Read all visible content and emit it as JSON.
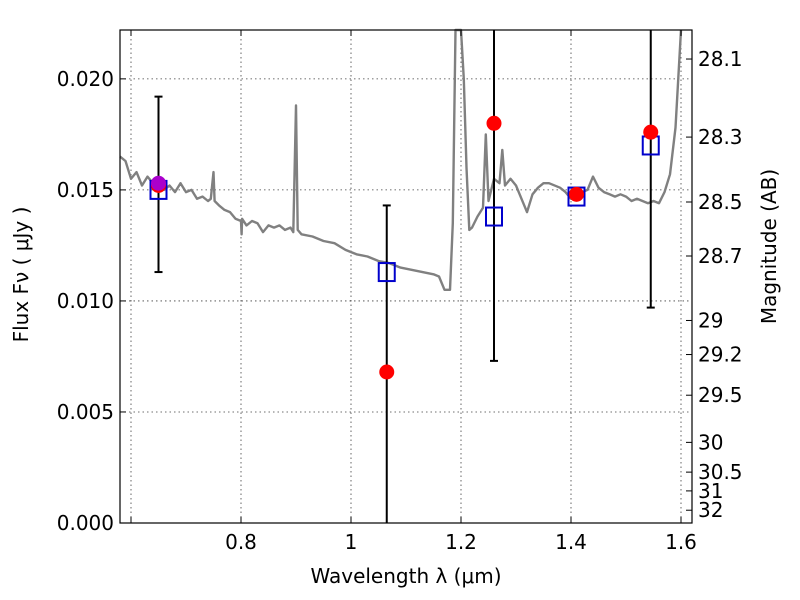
{
  "chart_data": {
    "type": "scatter",
    "title": "",
    "xlabel": "Wavelength  λ (μm)",
    "ylabel": "Flux  Fν  ( μJy )",
    "ylabel_right": "Magnitude (AB)",
    "xlim": [
      0.58,
      1.62
    ],
    "ylim": [
      0.0,
      0.0222
    ],
    "grid": true,
    "x_ticks": [
      {
        "value": 0.6,
        "label": ""
      },
      {
        "value": 0.8,
        "label": "0.8"
      },
      {
        "value": 1.0,
        "label": "1"
      },
      {
        "value": 1.2,
        "label": "1.2"
      },
      {
        "value": 1.4,
        "label": "1.4"
      },
      {
        "value": 1.6,
        "label": "1.6"
      }
    ],
    "y_ticks": [
      {
        "value": 0.0,
        "label": "0.000"
      },
      {
        "value": 0.005,
        "label": "0.005"
      },
      {
        "value": 0.01,
        "label": "0.010"
      },
      {
        "value": 0.015,
        "label": "0.015"
      },
      {
        "value": 0.02,
        "label": "0.020"
      }
    ],
    "mag_ticks": [
      "28.1",
      "28.3",
      "28.5",
      "28.7",
      "29",
      "29.2",
      "29.5",
      "30",
      "30.5",
      "31",
      "32"
    ],
    "series": [
      {
        "kind": "spectrum",
        "color": "#808080",
        "points": [
          [
            0.58,
            0.0165
          ],
          [
            0.59,
            0.0163
          ],
          [
            0.6,
            0.0155
          ],
          [
            0.61,
            0.0158
          ],
          [
            0.62,
            0.0152
          ],
          [
            0.63,
            0.0156
          ],
          [
            0.64,
            0.0153
          ],
          [
            0.65,
            0.0152
          ],
          [
            0.66,
            0.015
          ],
          [
            0.67,
            0.0152
          ],
          [
            0.68,
            0.0149
          ],
          [
            0.69,
            0.0153
          ],
          [
            0.7,
            0.0149
          ],
          [
            0.71,
            0.015
          ],
          [
            0.72,
            0.0146
          ],
          [
            0.73,
            0.0147
          ],
          [
            0.74,
            0.0145
          ],
          [
            0.745,
            0.0146
          ],
          [
            0.75,
            0.0158
          ],
          [
            0.752,
            0.0145
          ],
          [
            0.76,
            0.0143
          ],
          [
            0.77,
            0.0141
          ],
          [
            0.78,
            0.014
          ],
          [
            0.79,
            0.0137
          ],
          [
            0.8,
            0.0136
          ],
          [
            0.801,
            0.013
          ],
          [
            0.802,
            0.0137
          ],
          [
            0.81,
            0.0134
          ],
          [
            0.82,
            0.0136
          ],
          [
            0.83,
            0.0135
          ],
          [
            0.84,
            0.0131
          ],
          [
            0.85,
            0.0134
          ],
          [
            0.86,
            0.0133
          ],
          [
            0.87,
            0.0134
          ],
          [
            0.88,
            0.0132
          ],
          [
            0.89,
            0.0133
          ],
          [
            0.895,
            0.0131
          ],
          [
            0.9,
            0.0188
          ],
          [
            0.903,
            0.0132
          ],
          [
            0.91,
            0.013
          ],
          [
            0.93,
            0.0129
          ],
          [
            0.95,
            0.0127
          ],
          [
            0.97,
            0.0126
          ],
          [
            0.99,
            0.0123
          ],
          [
            1.01,
            0.0121
          ],
          [
            1.03,
            0.012
          ],
          [
            1.05,
            0.0118
          ],
          [
            1.07,
            0.0117
          ],
          [
            1.09,
            0.0115
          ],
          [
            1.11,
            0.0114
          ],
          [
            1.13,
            0.0113
          ],
          [
            1.15,
            0.0112
          ],
          [
            1.16,
            0.0111
          ],
          [
            1.17,
            0.0105
          ],
          [
            1.18,
            0.0105
          ],
          [
            1.185,
            0.0135
          ],
          [
            1.19,
            0.0222
          ],
          [
            1.195,
            0.0222
          ],
          [
            1.2,
            0.0222
          ],
          [
            1.205,
            0.02
          ],
          [
            1.21,
            0.016
          ],
          [
            1.215,
            0.0132
          ],
          [
            1.22,
            0.0133
          ],
          [
            1.23,
            0.0138
          ],
          [
            1.24,
            0.0142
          ],
          [
            1.245,
            0.0175
          ],
          [
            1.25,
            0.0145
          ],
          [
            1.26,
            0.0155
          ],
          [
            1.27,
            0.0153
          ],
          [
            1.275,
            0.0168
          ],
          [
            1.28,
            0.0152
          ],
          [
            1.29,
            0.0155
          ],
          [
            1.3,
            0.0152
          ],
          [
            1.31,
            0.0146
          ],
          [
            1.32,
            0.014
          ],
          [
            1.33,
            0.0148
          ],
          [
            1.34,
            0.0151
          ],
          [
            1.35,
            0.0153
          ],
          [
            1.36,
            0.0153
          ],
          [
            1.38,
            0.0151
          ],
          [
            1.39,
            0.0149
          ],
          [
            1.4,
            0.0146
          ],
          [
            1.41,
            0.0147
          ],
          [
            1.42,
            0.0149
          ],
          [
            1.43,
            0.015
          ],
          [
            1.44,
            0.0156
          ],
          [
            1.45,
            0.0151
          ],
          [
            1.46,
            0.0149
          ],
          [
            1.47,
            0.0148
          ],
          [
            1.48,
            0.0147
          ],
          [
            1.49,
            0.0148
          ],
          [
            1.5,
            0.0147
          ],
          [
            1.51,
            0.0145
          ],
          [
            1.52,
            0.0146
          ],
          [
            1.53,
            0.0145
          ],
          [
            1.54,
            0.0144
          ],
          [
            1.55,
            0.0145
          ],
          [
            1.56,
            0.0144
          ],
          [
            1.57,
            0.0149
          ],
          [
            1.58,
            0.0157
          ],
          [
            1.59,
            0.0178
          ],
          [
            1.6,
            0.0222
          ]
        ]
      },
      {
        "kind": "measured-flux",
        "color": "#ff0000",
        "points": [
          {
            "x": 0.65,
            "y": 0.0152,
            "yerr_low": 0.0113,
            "yerr_high": 0.0192
          },
          {
            "x": 1.065,
            "y": 0.0068,
            "yerr_low": 0.0,
            "yerr_high": 0.0143
          },
          {
            "x": 1.26,
            "y": 0.018,
            "yerr_low": 0.0073,
            "yerr_high": 0.0222
          },
          {
            "x": 1.41,
            "y": 0.0148,
            "yerr_low": null,
            "yerr_high": null
          },
          {
            "x": 1.545,
            "y": 0.0176,
            "yerr_low": 0.0097,
            "yerr_high": 0.0222
          }
        ]
      },
      {
        "kind": "model-flux",
        "color": "#0000cc",
        "points": [
          {
            "x": 0.65,
            "y": 0.015
          },
          {
            "x": 1.065,
            "y": 0.0113
          },
          {
            "x": 1.26,
            "y": 0.0138
          },
          {
            "x": 1.41,
            "y": 0.0147
          },
          {
            "x": 1.545,
            "y": 0.017
          }
        ]
      }
    ],
    "annotations": [
      {
        "kind": "marker",
        "x": 0.65,
        "y": 0.0153,
        "color": "#aa00cc"
      }
    ]
  }
}
